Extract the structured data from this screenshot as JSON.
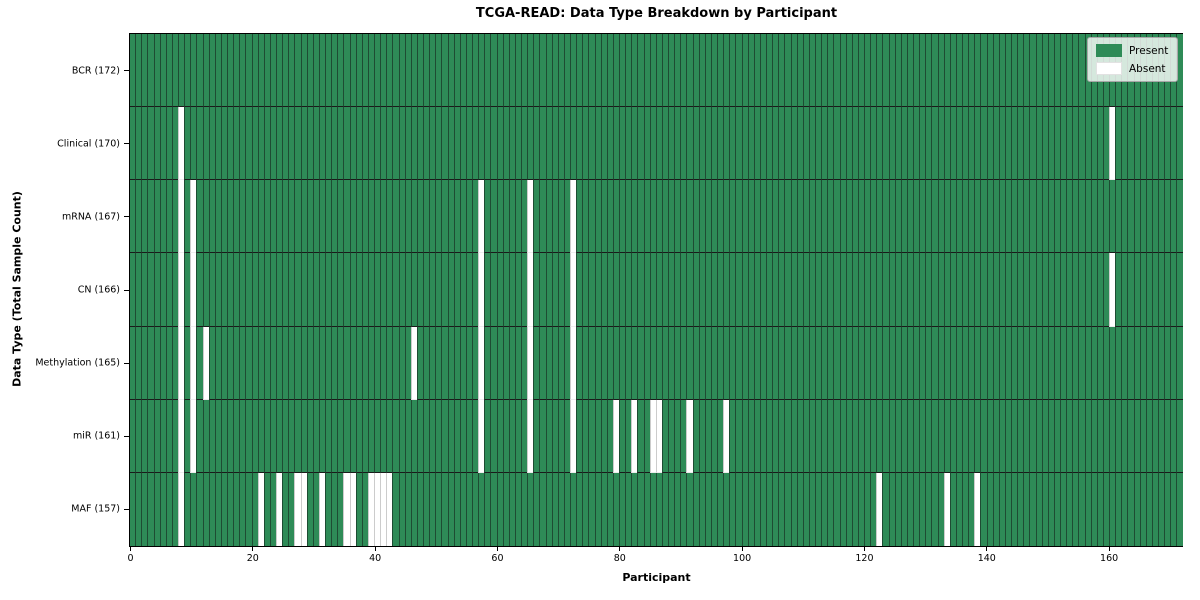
{
  "legend": {
    "present_label": "Present",
    "absent_label": "Absent"
  },
  "colors": {
    "present": "#2e8b57",
    "absent": "#ffffff",
    "cell_edge": "#1e4c33",
    "absent_edge": "#cccccc",
    "row_divider": "#1a1a1a"
  },
  "chart_data": {
    "type": "heatmap",
    "title": "TCGA-READ: Data Type Breakdown by Participant",
    "xlabel": "Participant",
    "ylabel": "Data Type (Total Sample Count)",
    "total_participants": 172,
    "xticks": [
      0,
      20,
      40,
      60,
      80,
      100,
      120,
      140,
      160
    ],
    "xlim": [
      0,
      172
    ],
    "grid": false,
    "legend_position": "upper right",
    "legend_entries": [
      "Present",
      "Absent"
    ],
    "rows": [
      {
        "data_type": "BCR",
        "label": "BCR (172)",
        "present_count": 172,
        "absent_participants": []
      },
      {
        "data_type": "Clinical",
        "label": "Clinical (170)",
        "present_count": 170,
        "absent_participants": [
          8,
          160
        ]
      },
      {
        "data_type": "mRNA",
        "label": "mRNA (167)",
        "present_count": 167,
        "absent_participants": [
          8,
          10,
          57,
          65,
          72
        ]
      },
      {
        "data_type": "CN",
        "label": "CN (166)",
        "present_count": 166,
        "absent_participants": [
          8,
          10,
          57,
          65,
          72,
          160
        ]
      },
      {
        "data_type": "Methylation",
        "label": "Methylation (165)",
        "present_count": 165,
        "absent_participants": [
          8,
          10,
          12,
          46,
          57,
          65,
          72
        ]
      },
      {
        "data_type": "miR",
        "label": "miR (161)",
        "present_count": 161,
        "absent_participants": [
          8,
          10,
          57,
          65,
          72,
          79,
          82,
          85,
          86,
          91,
          97
        ]
      },
      {
        "data_type": "MAF",
        "label": "MAF (157)",
        "present_count": 157,
        "absent_participants": [
          8,
          21,
          24,
          27,
          28,
          31,
          35,
          36,
          39,
          40,
          41,
          42,
          122,
          133,
          138
        ]
      }
    ]
  }
}
